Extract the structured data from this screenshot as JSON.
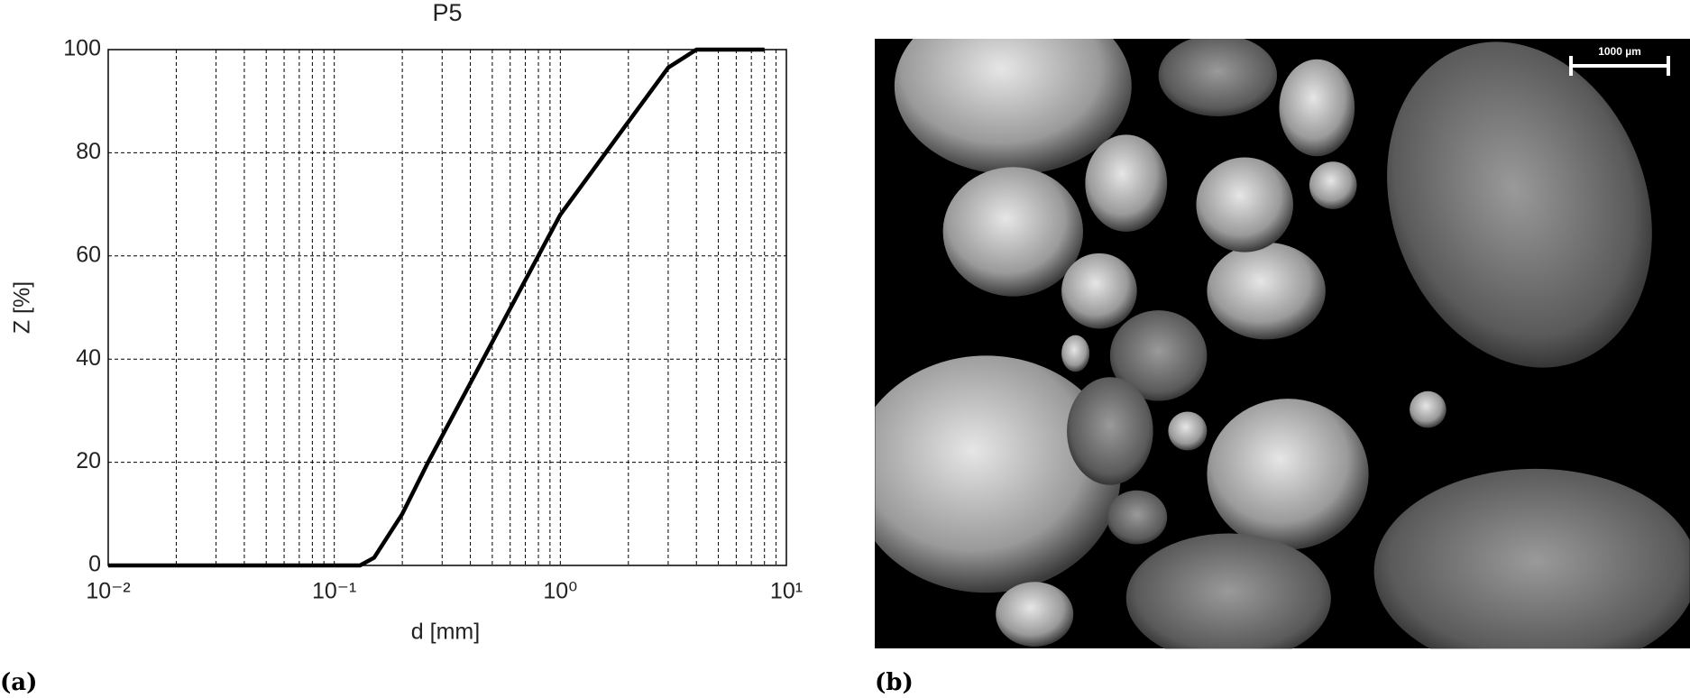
{
  "chart_data": {
    "type": "line",
    "title": "P5",
    "xlabel": "d [mm]",
    "ylabel": "Z [%]",
    "xscale": "log",
    "grid": true,
    "color": "#000000",
    "x": [
      0.01,
      0.13,
      0.15,
      0.2,
      0.26,
      1.0,
      2.0,
      3.0,
      4.0,
      8.0
    ],
    "values": [
      0,
      0,
      1.5,
      10,
      20,
      68,
      86,
      96.5,
      100,
      100
    ],
    "xlim": [
      0.01,
      10
    ],
    "xticks": [
      {
        "value": 0.01,
        "label": "10⁻²"
      },
      {
        "value": 0.1,
        "label": "10⁻¹"
      },
      {
        "value": 1,
        "label": "10⁰"
      },
      {
        "value": 10,
        "label": "10¹"
      }
    ],
    "ylim": [
      0,
      100
    ],
    "yticks": [
      0,
      20,
      40,
      60,
      80,
      100
    ]
  },
  "panels": {
    "a": "(a)",
    "b": "(b)"
  },
  "photo": {
    "scale_bar": "1000 µm"
  }
}
